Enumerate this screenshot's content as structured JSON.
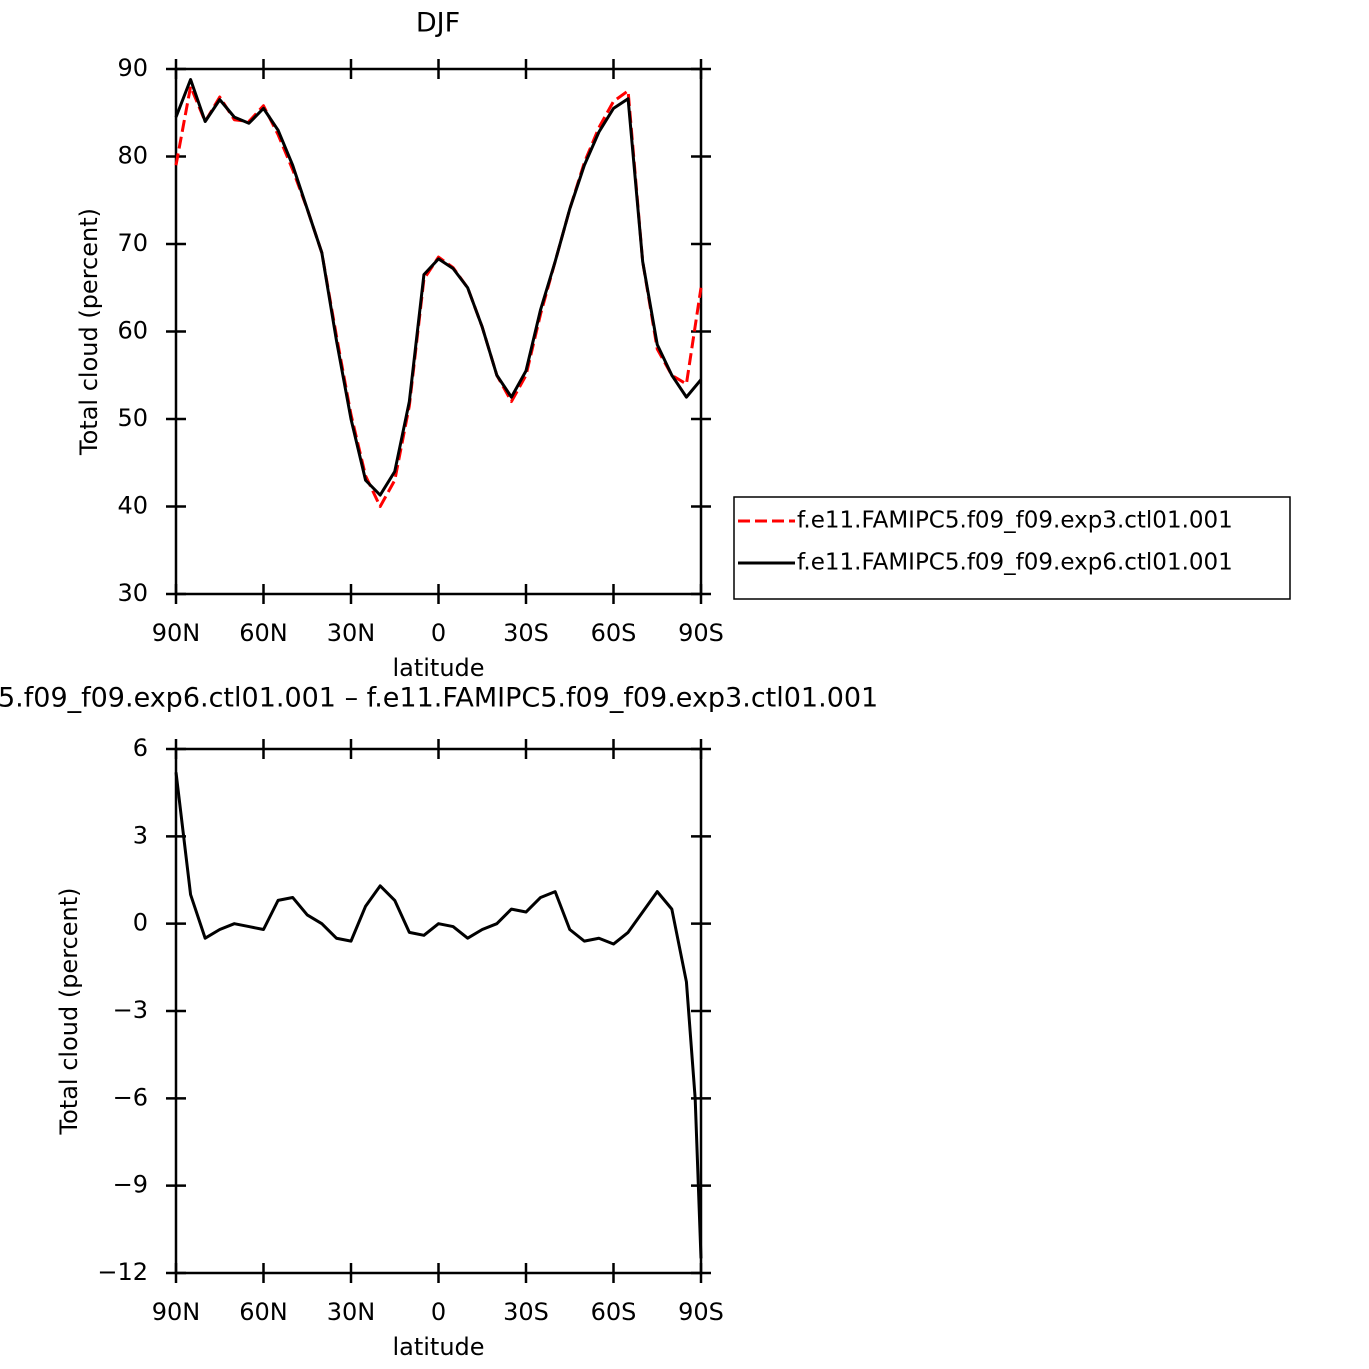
{
  "chart_data": [
    {
      "type": "line",
      "title": "DJF",
      "xlabel": "latitude",
      "ylabel": "Total cloud (percent)",
      "x": [
        90,
        85,
        80,
        75,
        70,
        65,
        60,
        55,
        50,
        45,
        40,
        35,
        30,
        25,
        20,
        15,
        10,
        5,
        0,
        -5,
        -10,
        -15,
        -20,
        -25,
        -30,
        -35,
        -40,
        -45,
        -50,
        -55,
        -60,
        -65,
        -70,
        -75,
        -80,
        -85,
        -90
      ],
      "xlim": [
        90,
        -90
      ],
      "xticks": [
        {
          "value": 90,
          "label": "90N"
        },
        {
          "value": 60,
          "label": "60N"
        },
        {
          "value": 30,
          "label": "30N"
        },
        0,
        {
          "value": -30,
          "label": "30S"
        },
        {
          "value": -60,
          "label": "60S"
        },
        {
          "value": -90,
          "label": "90S"
        }
      ],
      "ylim": [
        30,
        90
      ],
      "yticks": [
        30,
        40,
        50,
        60,
        70,
        80,
        90
      ],
      "legend": "right",
      "series": [
        {
          "name": "f.e11.FAMIPC5.f09_f09.exp3.ctl01.001",
          "color": "#ff0000",
          "dash": "dashed",
          "values": [
            79,
            88,
            84,
            86.8,
            84.2,
            84,
            85.8,
            82.5,
            78.5,
            74,
            69,
            59.5,
            50.5,
            43.5,
            40,
            43,
            51.5,
            66,
            68.5,
            67.3,
            65,
            60.5,
            55,
            52,
            55,
            62,
            68,
            74,
            79.3,
            83.3,
            86.3,
            87.5,
            68,
            58,
            55,
            54,
            65
          ]
        },
        {
          "name": "f.e11.FAMIPC5.f09_f09.exp6.ctl01.001",
          "color": "#000000",
          "dash": "solid",
          "values": [
            84.5,
            88.8,
            84,
            86.5,
            84.5,
            83.8,
            85.5,
            83,
            79,
            74,
            69,
            59,
            50,
            43,
            41.3,
            44,
            52,
            66.5,
            68.3,
            67.2,
            65,
            60.5,
            55,
            52.5,
            55.5,
            62.5,
            68,
            74,
            79,
            82.8,
            85.5,
            86.6,
            68,
            58.5,
            55,
            52.5,
            54.5
          ]
        }
      ]
    },
    {
      "type": "line",
      "title": "5.f09_f09.exp6.ctl01.001 – f.e11.FAMIPC5.f09_f09.exp3.ctl01.001",
      "xlabel": "latitude",
      "ylabel": "Total cloud (percent)",
      "x": [
        90,
        85,
        80,
        75,
        70,
        65,
        60,
        55,
        50,
        45,
        40,
        35,
        30,
        25,
        20,
        15,
        10,
        5,
        0,
        -5,
        -10,
        -15,
        -20,
        -25,
        -30,
        -35,
        -40,
        -45,
        -50,
        -55,
        -60,
        -65,
        -70,
        -75,
        -80,
        -85,
        -88,
        -90
      ],
      "xlim": [
        90,
        -90
      ],
      "xticks": [
        {
          "value": 90,
          "label": "90N"
        },
        {
          "value": 60,
          "label": "60N"
        },
        {
          "value": 30,
          "label": "30N"
        },
        0,
        {
          "value": -30,
          "label": "30S"
        },
        {
          "value": -60,
          "label": "60S"
        },
        {
          "value": -90,
          "label": "90S"
        }
      ],
      "ylim": [
        -12,
        6
      ],
      "yticks": [
        {
          "value": -12,
          "label": "−12"
        },
        {
          "value": -9,
          "label": "−9"
        },
        {
          "value": -6,
          "label": "−6"
        },
        {
          "value": -3,
          "label": "−3"
        },
        0,
        3,
        6
      ],
      "color": "#000000",
      "values": [
        5.2,
        1,
        -0.5,
        -0.2,
        0,
        -0.1,
        -0.2,
        0.8,
        0.9,
        0.3,
        0,
        -0.5,
        -0.6,
        0.6,
        1.3,
        0.8,
        -0.3,
        -0.4,
        0,
        -0.1,
        -0.5,
        -0.2,
        0,
        0.5,
        0.4,
        0.9,
        1.1,
        -0.2,
        -0.6,
        -0.5,
        -0.7,
        -0.3,
        0.4,
        1.1,
        0.5,
        -2,
        -6,
        -11.5
      ]
    }
  ]
}
